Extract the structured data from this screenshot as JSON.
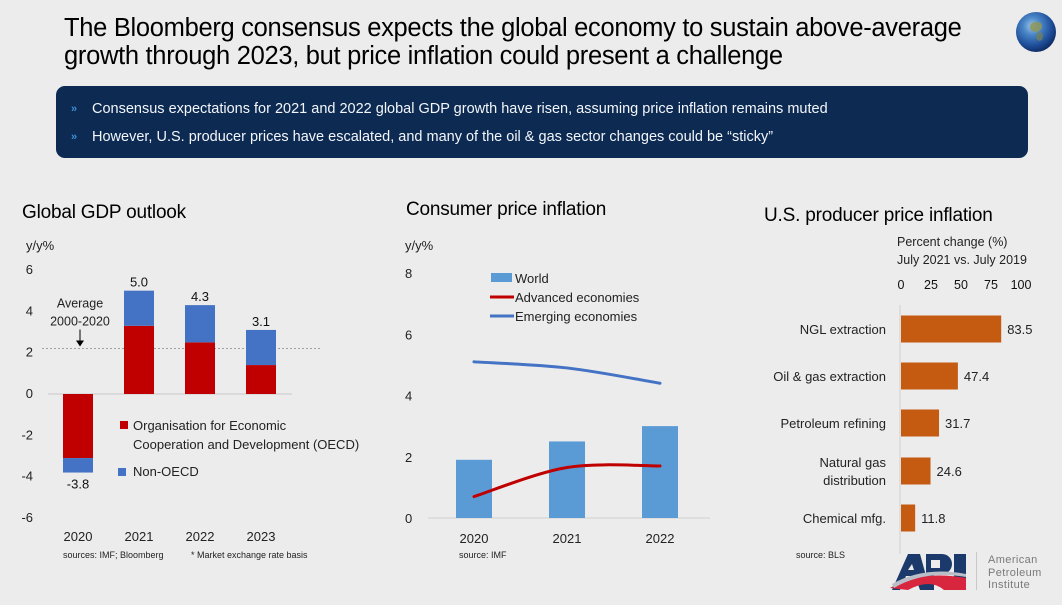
{
  "slide": {
    "title": "The Bloomberg consensus expects the global economy to sustain above-average growth through 2023, but price inflation could present a challenge",
    "bullets": [
      "Consensus expectations for 2021 and 2022 global GDP growth have risen, assuming price inflation remains muted",
      "However, U.S. producer prices have escalated, and many of the oil & gas sector changes could be “sticky”"
    ],
    "bullet_icon": "double-chevron-right-icon",
    "globe_icon": "globe-icon",
    "logo": {
      "mark": "API",
      "lines": [
        "American",
        "Petroleum",
        "Institute"
      ]
    }
  },
  "colors": {
    "oecd_red": "#c00000",
    "non_oecd_blue": "#4472c4",
    "world_bar": "#5b9bd5",
    "advanced_line": "#c00000",
    "emerging_line": "#4472c4",
    "ppi_bar": "#c55a11",
    "banner_bg": "#0c2a52",
    "api_blue": "#1b3a6b",
    "api_red": "#d7263d"
  },
  "chart_data": [
    {
      "type": "bar",
      "stacked": true,
      "title": "Global GDP outlook",
      "ylabel": "y/y%",
      "xlabel": "",
      "categories": [
        "2020",
        "2021",
        "2022",
        "2023"
      ],
      "series": [
        {
          "name": "Organisation for Economic Cooperation and Development (OECD)",
          "values": [
            -3.1,
            3.3,
            2.5,
            1.4
          ]
        },
        {
          "name": "Non-OECD",
          "values": [
            -0.7,
            1.7,
            1.8,
            1.7
          ]
        }
      ],
      "totals": [
        -3.8,
        5.0,
        4.3,
        3.1
      ],
      "total_labels": [
        "-3.8",
        "5.0",
        "4.3",
        "3.1"
      ],
      "ylim": [
        -6,
        6
      ],
      "yticks": [
        "6",
        "4",
        "2",
        "0",
        "-2",
        "-4",
        "-6"
      ],
      "yticks_values": [
        6,
        4,
        2,
        0,
        -2,
        -4,
        -6
      ],
      "reference_line": {
        "value": 2.2,
        "label_lines": [
          "Average",
          "2000-2020"
        ]
      },
      "legend_position": "center-right",
      "grid": false,
      "footnote": "sources: IMF; Bloomberg",
      "footnote2": "* Market exchange rate basis",
      "legend_lines": [
        "Organisation for Economic",
        "Cooperation and Development (OECD)"
      ]
    },
    {
      "type": "bar",
      "combo": "bar+line",
      "title": "Consumer price inflation",
      "ylabel": "y/y%",
      "xlabel": "",
      "categories": [
        "2020",
        "2021",
        "2022"
      ],
      "series": [
        {
          "name": "World",
          "kind": "bar",
          "values": [
            1.9,
            2.5,
            3.0
          ]
        },
        {
          "name": "Advanced economies",
          "kind": "line",
          "values": [
            0.7,
            1.65,
            1.7
          ]
        },
        {
          "name": "Emerging economies",
          "kind": "line",
          "values": [
            5.1,
            4.9,
            4.4
          ]
        }
      ],
      "ylim": [
        0,
        8
      ],
      "yticks": [
        "8",
        "6",
        "4",
        "2",
        "0"
      ],
      "yticks_values": [
        8,
        6,
        4,
        2,
        0
      ],
      "legend_position": "top-center",
      "grid": false,
      "footnote": "source:  IMF"
    },
    {
      "type": "bar",
      "orientation": "horizontal",
      "title": "U.S. producer price inflation",
      "subtitle_lines": [
        "Percent change (%)",
        "July 2021  vs. July 2019"
      ],
      "categories": [
        "NGL extraction",
        "Oil & gas extraction",
        "Petroleum refining",
        "Natural gas distribution",
        "Chemical mfg."
      ],
      "category_lines": [
        [
          "NGL extraction"
        ],
        [
          "Oil & gas extraction"
        ],
        [
          "Petroleum refining"
        ],
        [
          "Natural gas",
          "distribution"
        ],
        [
          "Chemical mfg."
        ]
      ],
      "values": [
        83.5,
        47.4,
        31.7,
        24.6,
        11.8
      ],
      "value_labels": [
        "83.5",
        "47.4",
        "31.7",
        "24.6",
        "11.8"
      ],
      "xlim": [
        0,
        100
      ],
      "xticks": [
        "0",
        "25",
        "50",
        "75",
        "100"
      ],
      "xticks_values": [
        0,
        25,
        50,
        75,
        100
      ],
      "grid": false,
      "footnote": "source: BLS"
    }
  ]
}
